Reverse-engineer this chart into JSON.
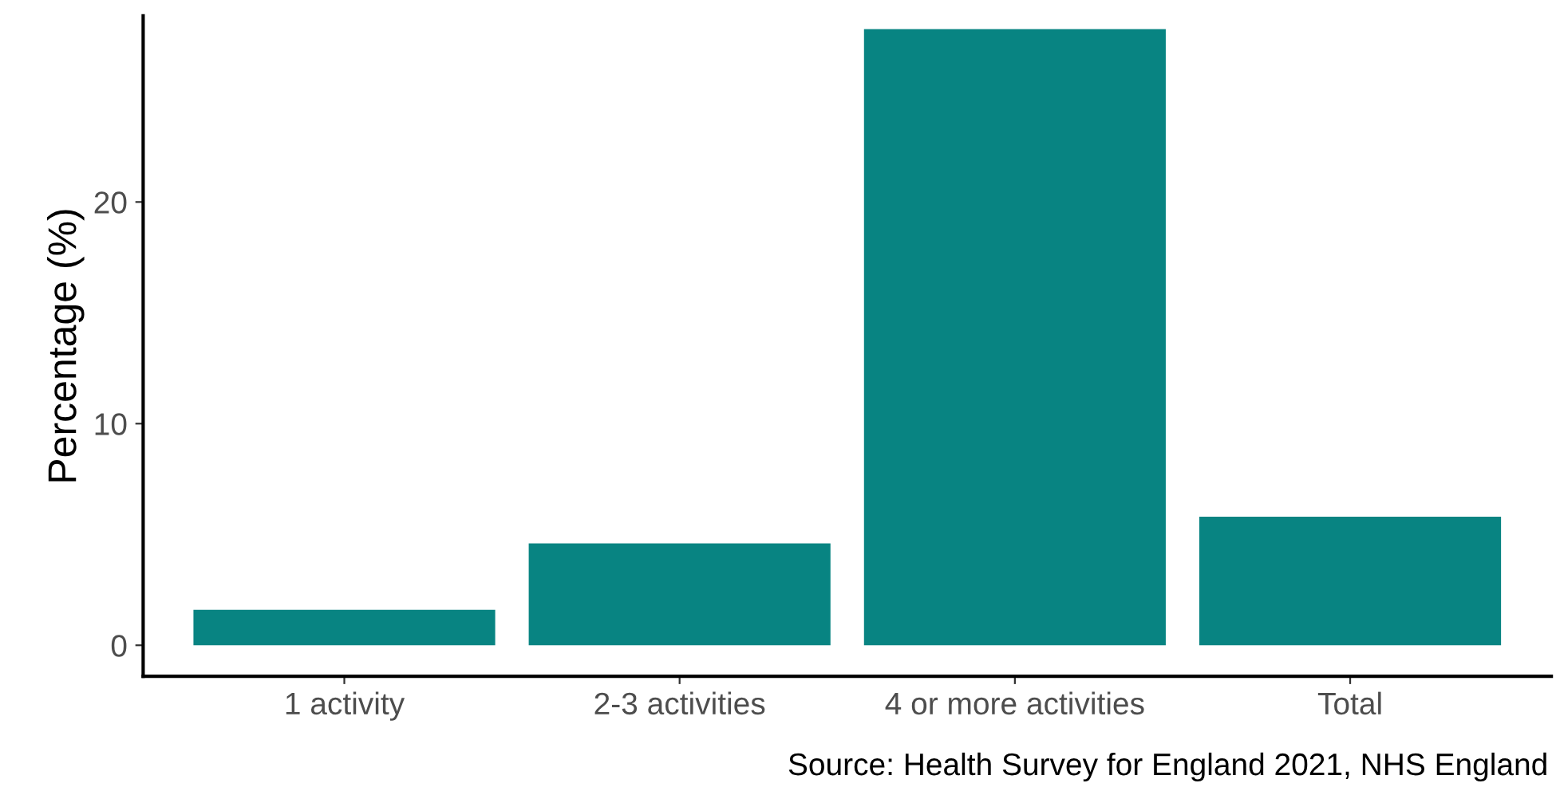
{
  "chart_data": {
    "type": "bar",
    "ylabel": "Percentage (%)",
    "categories": [
      "1 activity",
      "2-3 activities",
      "4 or more activities",
      "Total"
    ],
    "values": [
      1.6,
      4.6,
      27.8,
      5.8
    ],
    "color": "#088482",
    "ylim": [
      -1.4,
      28.4
    ],
    "yticks": [
      0,
      10,
      20
    ],
    "grid": false,
    "annotations": [
      "Source: Health Survey for England 2021, NHS England"
    ]
  }
}
